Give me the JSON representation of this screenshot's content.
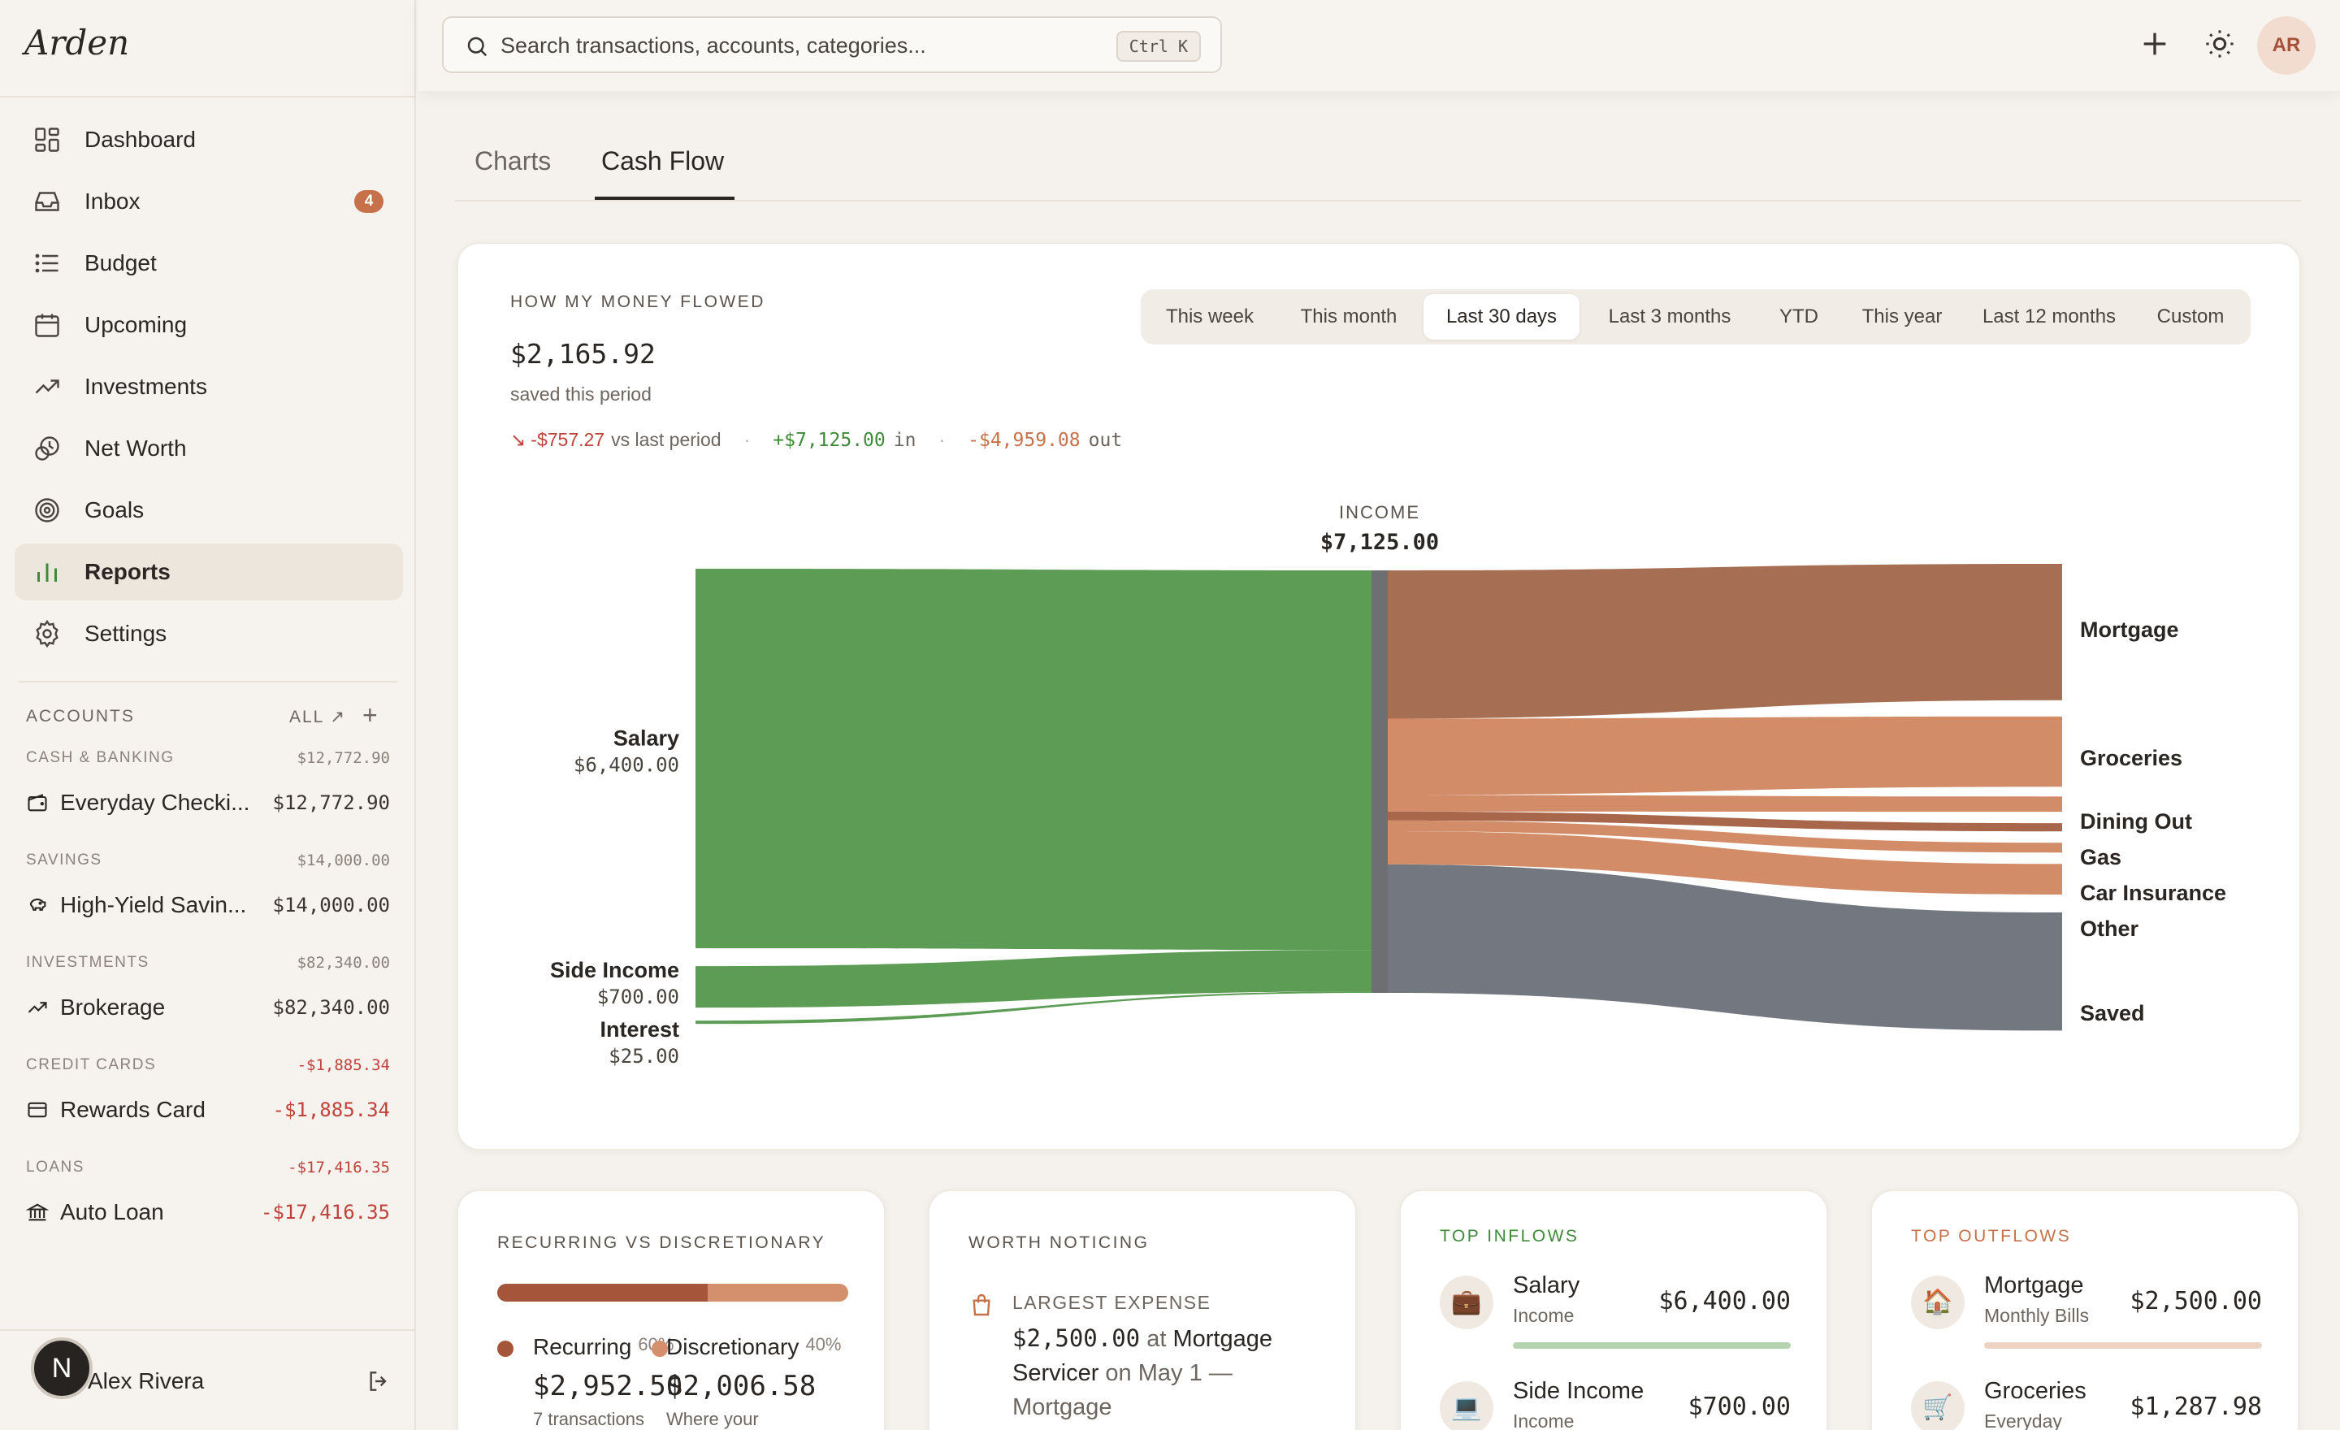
{
  "app": {
    "brand": "Arden"
  },
  "nav": [
    {
      "label": "Dashboard",
      "icon": "dashboard-icon"
    },
    {
      "label": "Inbox",
      "icon": "inbox-icon",
      "badge": "4"
    },
    {
      "label": "Budget",
      "icon": "list-icon"
    },
    {
      "label": "Upcoming",
      "icon": "calendar-icon"
    },
    {
      "label": "Investments",
      "icon": "trend-up-icon"
    },
    {
      "label": "Net Worth",
      "icon": "net-worth-icon"
    },
    {
      "label": "Goals",
      "icon": "target-icon"
    },
    {
      "label": "Reports",
      "icon": "bar-chart-icon",
      "active": true
    },
    {
      "label": "Settings",
      "icon": "gear-icon"
    }
  ],
  "accounts": {
    "header": "ACCOUNTS",
    "all_label": "ALL ↗",
    "groups": [
      {
        "name": "CASH & BANKING",
        "total": "$12,772.90",
        "account": "Everyday Checki...",
        "value": "$12,772.90",
        "icon": "wallet-icon"
      },
      {
        "name": "SAVINGS",
        "total": "$14,000.00",
        "account": "High-Yield Savin...",
        "value": "$14,000.00",
        "icon": "piggy-bank-icon"
      },
      {
        "name": "INVESTMENTS",
        "total": "$82,340.00",
        "account": "Brokerage",
        "value": "$82,340.00",
        "icon": "trend-up-icon"
      },
      {
        "name": "CREDIT CARDS",
        "total": "-$1,885.34",
        "account": "Rewards Card",
        "value": "-$1,885.34",
        "icon": "credit-card-icon",
        "negative": true
      },
      {
        "name": "LOANS",
        "total": "-$17,416.35",
        "account": "Auto Loan",
        "value": "-$17,416.35",
        "icon": "bank-icon",
        "negative": true
      }
    ]
  },
  "user": {
    "initial": "N",
    "name": "Alex Rivera"
  },
  "topbar": {
    "search_placeholder": "Search transactions, accounts, categories...",
    "shortcut": "Ctrl K",
    "avatar": "AR"
  },
  "tabs": [
    {
      "label": "Charts"
    },
    {
      "label": "Cash Flow",
      "active": true
    }
  ],
  "cashflow": {
    "eyebrow": "HOW MY MONEY FLOWED",
    "saved_amount": "$2,165.92",
    "saved_label": "saved this period",
    "change": "-$757.27",
    "change_label": "vs last period",
    "in_amount": "+$7,125.00",
    "in_label": "in",
    "out_amount": "-$4,959.08",
    "out_label": "out",
    "periods": [
      "This week",
      "This month",
      "Last 30 days",
      "Last 3 months",
      "YTD",
      "This year",
      "Last 12 months",
      "Custom"
    ],
    "selected_period": "Last 30 days"
  },
  "chart_data": {
    "type": "sankey",
    "center": {
      "label": "INCOME",
      "value": "$7,125.00",
      "amount": 7125
    },
    "sources": [
      {
        "name": "Salary",
        "display": "$6,400.00",
        "amount": 6400
      },
      {
        "name": "Side Income",
        "display": "$700.00",
        "amount": 700
      },
      {
        "name": "Interest",
        "display": "$25.00",
        "amount": 25
      }
    ],
    "targets": [
      {
        "name": "Mortgage",
        "amount": 2500,
        "color": "#a66f53"
      },
      {
        "name": "Groceries",
        "amount": 1287.98,
        "color": "#d38c68"
      },
      {
        "name": "Dining Out",
        "amount": 280,
        "color": "#d38c68"
      },
      {
        "name": "Gas",
        "amount": 150,
        "color": "#a8664a"
      },
      {
        "name": "Car Insurance",
        "amount": 180,
        "color": "#d38c68"
      },
      {
        "name": "Other",
        "amount": 561.1,
        "color": "#d38c68"
      },
      {
        "name": "Saved",
        "amount": 2165.92,
        "color": "#737880"
      }
    ],
    "colors": {
      "income": "#5c9c54",
      "center_node": "#6e6f73"
    }
  },
  "recurring": {
    "eyebrow": "RECURRING VS DISCRETIONARY",
    "recurring_fraction": 0.6,
    "items": [
      {
        "label": "Recurring",
        "pct": "60%",
        "value": "$2,952.50",
        "sub": "7 transactions",
        "color": "#a5553a"
      },
      {
        "label": "Discretionary",
        "pct": "40%",
        "value": "$2,006.58",
        "sub": "Where your",
        "color": "#d4906c"
      }
    ]
  },
  "notice": {
    "eyebrow": "WORTH NOTICING",
    "label": "LARGEST EXPENSE",
    "amount": "$2,500.00",
    "at": "at",
    "merchant": "Mortgage Servicer",
    "on": "on May 1 —",
    "category": "Mortgage"
  },
  "top_inflows": {
    "eyebrow": "TOP INFLOWS",
    "items": [
      {
        "name": "Salary",
        "sub": "Income",
        "value": "$6,400.00",
        "icon": "💼"
      },
      {
        "name": "Side Income",
        "sub": "Income",
        "value": "$700.00",
        "icon": "💻"
      }
    ]
  },
  "top_outflows": {
    "eyebrow": "TOP OUTFLOWS",
    "items": [
      {
        "name": "Mortgage",
        "sub": "Monthly Bills",
        "value": "$2,500.00",
        "icon": "🏠"
      },
      {
        "name": "Groceries",
        "sub": "Everyday",
        "value": "$1,287.98",
        "icon": "🛒"
      }
    ]
  }
}
